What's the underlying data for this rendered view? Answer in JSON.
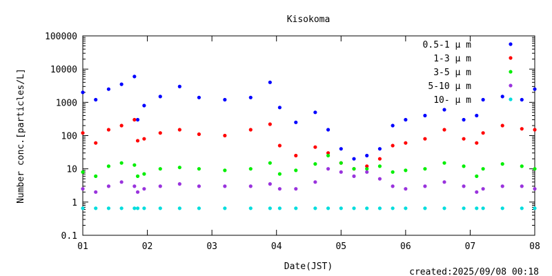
{
  "chart_data": {
    "type": "scatter",
    "title": "Kisokoma",
    "xlabel": "Date(JST)",
    "ylabel": "Number conc.[particles/L]",
    "xlim": [
      1,
      8
    ],
    "ylim": [
      0.1,
      100000
    ],
    "yscale": "log",
    "grid": false,
    "legend_position": "top-right",
    "x_ticks": [
      "01",
      "02",
      "03",
      "04",
      "05",
      "06",
      "07",
      "08"
    ],
    "y_ticks": [
      "0.1",
      "1",
      "10",
      "100",
      "1000",
      "10000",
      "100000"
    ],
    "created": "created:2025/09/08 00:18",
    "series": [
      {
        "name": "0.5-1μm",
        "label": "0.5-1 μ m",
        "color": "#0000ff",
        "x": [
          1.0,
          1.2,
          1.4,
          1.6,
          1.8,
          1.85,
          1.95,
          2.2,
          2.5,
          2.8,
          3.2,
          3.6,
          3.9,
          4.05,
          4.3,
          4.6,
          4.8,
          5.0,
          5.2,
          5.4,
          5.6,
          5.8,
          6.0,
          6.3,
          6.6,
          6.9,
          7.1,
          7.2,
          7.5,
          7.8,
          8.0
        ],
        "values": [
          2000,
          1200,
          2500,
          3500,
          6000,
          300,
          800,
          1500,
          3000,
          1400,
          1200,
          1400,
          4000,
          700,
          250,
          500,
          150,
          40,
          20,
          25,
          40,
          200,
          300,
          400,
          600,
          300,
          400,
          1200,
          1500,
          1200,
          2500
        ]
      },
      {
        "name": "1-3μm",
        "label": "1-3 μ m",
        "color": "#ff0000",
        "x": [
          1.0,
          1.2,
          1.4,
          1.6,
          1.8,
          1.85,
          1.95,
          2.2,
          2.5,
          2.8,
          3.2,
          3.6,
          3.9,
          4.05,
          4.3,
          4.6,
          4.8,
          5.0,
          5.2,
          5.4,
          5.6,
          5.8,
          6.0,
          6.3,
          6.6,
          6.9,
          7.1,
          7.2,
          7.5,
          7.8,
          8.0
        ],
        "values": [
          120,
          60,
          150,
          200,
          300,
          70,
          80,
          120,
          150,
          110,
          100,
          150,
          220,
          50,
          25,
          45,
          30,
          15,
          10,
          12,
          20,
          50,
          60,
          80,
          150,
          80,
          60,
          120,
          200,
          160,
          150
        ]
      },
      {
        "name": "3-5μm",
        "label": "3-5 μ m",
        "color": "#00ee00",
        "x": [
          1.0,
          1.2,
          1.4,
          1.6,
          1.8,
          1.85,
          1.95,
          2.2,
          2.5,
          2.8,
          3.2,
          3.6,
          3.9,
          4.05,
          4.3,
          4.6,
          4.8,
          5.0,
          5.2,
          5.4,
          5.6,
          5.8,
          6.0,
          6.3,
          6.6,
          6.9,
          7.1,
          7.2,
          7.5,
          7.8,
          8.0
        ],
        "values": [
          8,
          6,
          12,
          15,
          13,
          6,
          7,
          10,
          11,
          10,
          9,
          10,
          15,
          7,
          9,
          14,
          25,
          15,
          10,
          10,
          12,
          8,
          9,
          10,
          15,
          12,
          6,
          10,
          14,
          12,
          10
        ]
      },
      {
        "name": "5-10μm",
        "label": "5-10 μ m",
        "color": "#9933dd",
        "x": [
          1.0,
          1.2,
          1.4,
          1.6,
          1.8,
          1.85,
          1.95,
          2.2,
          2.5,
          2.8,
          3.2,
          3.6,
          3.9,
          4.05,
          4.3,
          4.6,
          4.8,
          5.0,
          5.2,
          5.4,
          5.6,
          5.8,
          6.0,
          6.3,
          6.6,
          6.9,
          7.1,
          7.2,
          7.5,
          7.8,
          8.0
        ],
        "values": [
          2.5,
          2,
          3,
          4,
          3,
          2,
          2.5,
          3,
          3.5,
          3,
          3,
          3,
          3.5,
          2.5,
          2.5,
          4,
          10,
          8,
          6,
          8,
          5,
          3,
          2.5,
          3,
          4,
          3,
          2,
          2.5,
          3,
          3,
          2.5
        ]
      },
      {
        "name": "10-μm",
        "label": "10- μ m",
        "color": "#00dddd",
        "x": [
          1.0,
          1.2,
          1.4,
          1.6,
          1.8,
          1.85,
          1.95,
          2.2,
          2.5,
          2.8,
          3.2,
          3.6,
          3.9,
          4.05,
          4.3,
          4.6,
          4.8,
          5.0,
          5.2,
          5.4,
          5.6,
          5.8,
          6.0,
          6.3,
          6.6,
          6.9,
          7.1,
          7.2,
          7.5,
          7.8,
          8.0
        ],
        "values": [
          0.65,
          0.65,
          0.65,
          0.65,
          0.65,
          0.65,
          0.65,
          0.65,
          0.65,
          0.65,
          0.65,
          0.65,
          0.65,
          0.65,
          0.65,
          0.65,
          0.65,
          0.65,
          0.65,
          0.65,
          0.65,
          0.65,
          0.65,
          0.65,
          0.65,
          0.65,
          0.65,
          0.65,
          0.65,
          0.65,
          0.65
        ]
      }
    ]
  }
}
